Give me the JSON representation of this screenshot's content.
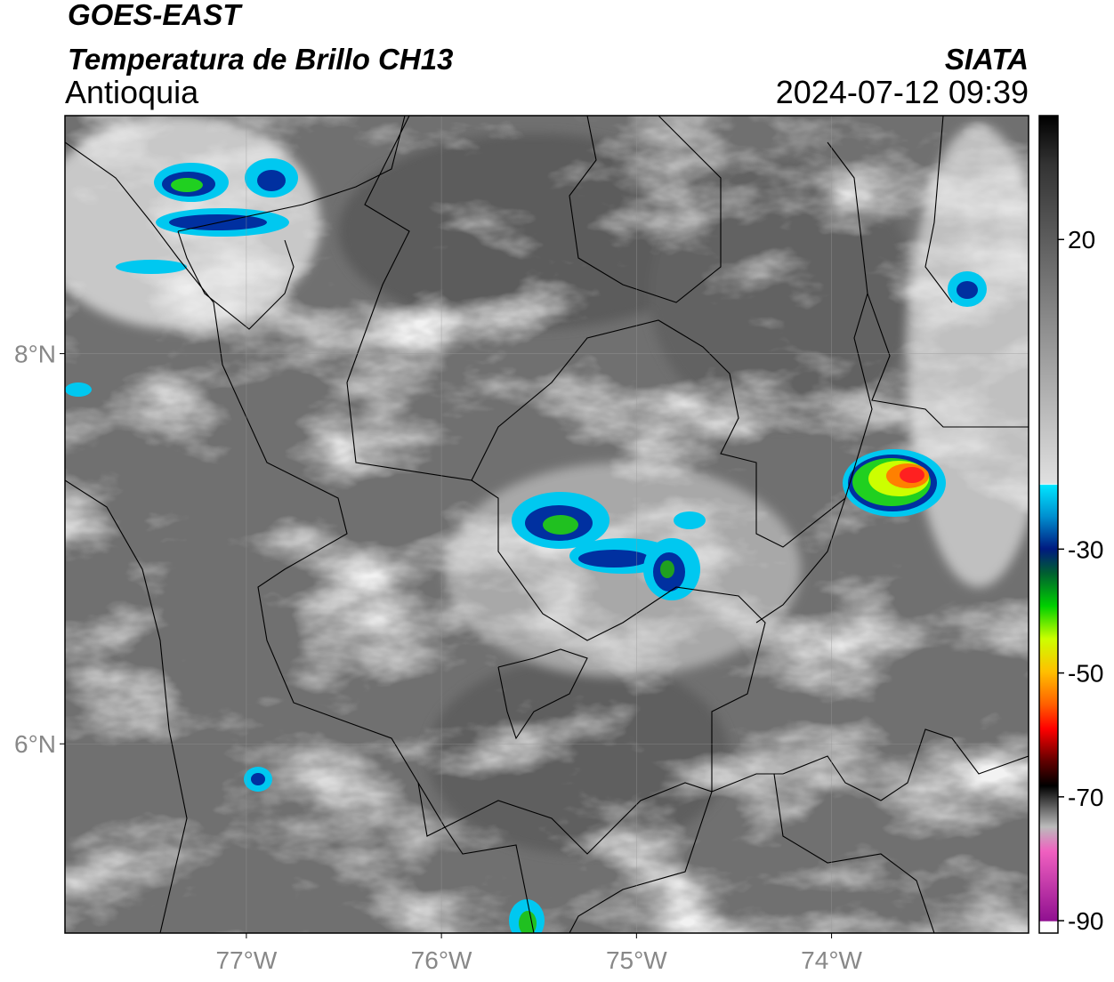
{
  "header": {
    "title": "GOES-EAST",
    "subtitle": "Temperatura de Brillo CH13",
    "region": "Antioquia",
    "source": "SIATA",
    "datetime": "2024-07-12 09:39"
  },
  "map": {
    "xlim": [
      -77.93,
      -72.99
    ],
    "ylim": [
      5.03,
      9.22
    ],
    "xticks": [
      {
        "value": -77,
        "label": "77°W"
      },
      {
        "value": -76,
        "label": "76°W"
      },
      {
        "value": -75,
        "label": "75°W"
      },
      {
        "value": -74,
        "label": "74°W"
      }
    ],
    "yticks": [
      {
        "value": 8,
        "label": "8°N"
      },
      {
        "value": 6,
        "label": "6°N"
      }
    ],
    "grid": true
  },
  "colorbar": {
    "lim": [
      -92,
      40
    ],
    "ticks": [
      20,
      -30,
      -50,
      -70,
      -90
    ]
  }
}
